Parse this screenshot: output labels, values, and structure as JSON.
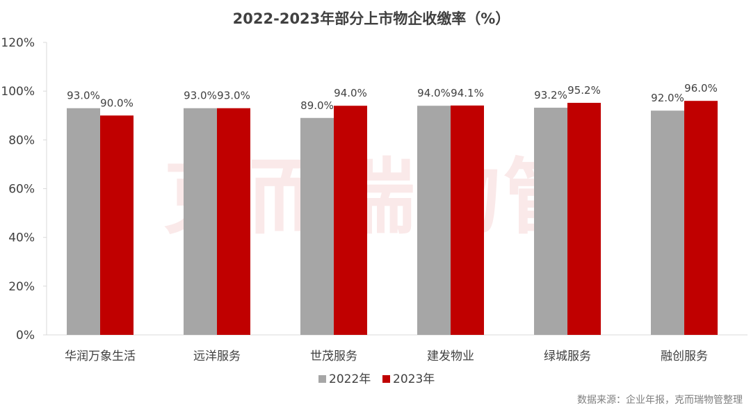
{
  "chart_data": {
    "type": "bar",
    "title": "2022-2023年部分上市物企收缴率（%）",
    "categories": [
      "华润万象生活",
      "远洋服务",
      "世茂服务",
      "建发物业",
      "绿城服务",
      "融创服务"
    ],
    "series": [
      {
        "name": "2022年",
        "color": "#a6a6a6",
        "values": [
          93.0,
          93.0,
          89.0,
          94.0,
          93.2,
          92.0
        ],
        "labels": [
          "93.0%",
          "93.0%",
          "89.0%",
          "94.0%",
          "93.2%",
          "92.0%"
        ]
      },
      {
        "name": "2023年",
        "color": "#c00000",
        "values": [
          90.0,
          93.0,
          94.0,
          94.1,
          95.2,
          96.0
        ],
        "labels": [
          "90.0%",
          "93.0%",
          "94.0%",
          "94.1%",
          "95.2%",
          "96.0%"
        ]
      }
    ],
    "ylim": [
      0,
      120
    ],
    "yticks": [
      0,
      20,
      40,
      60,
      80,
      100,
      120
    ],
    "ytick_labels": [
      "0%",
      "20%",
      "40%",
      "60%",
      "80%",
      "100%",
      "120%"
    ],
    "xlabel": "",
    "ylabel": "",
    "grid": false,
    "legend_position": "bottom-center"
  },
  "source_note": "数据来源：企业年报，克而瑞物管整理",
  "watermark": "克而瑞物管"
}
